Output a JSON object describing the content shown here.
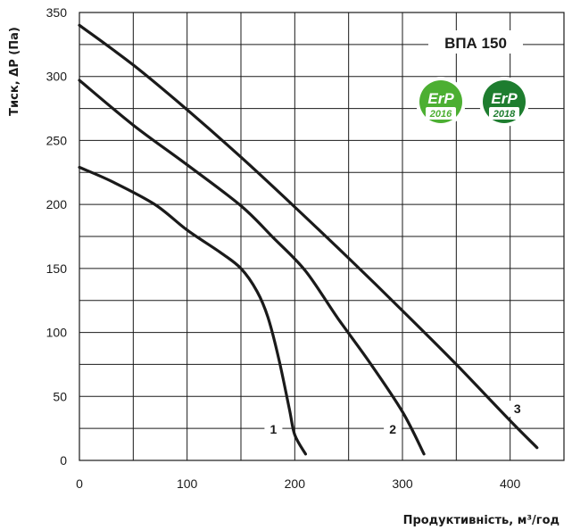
{
  "chart_data": {
    "type": "line",
    "title": "ВПА 150",
    "xlabel": "Продуктивність, м³/год",
    "ylabel": "Тиск, ΔP (Па)",
    "xlim": [
      0,
      450
    ],
    "ylim": [
      0,
      350
    ],
    "x_ticks": [
      "0",
      "100",
      "200",
      "300",
      "400"
    ],
    "y_ticks": [
      "0",
      "50",
      "100",
      "150",
      "200",
      "250",
      "300",
      "350"
    ],
    "grid": true,
    "legend": "none",
    "series": [
      {
        "name": "1",
        "points": [
          [
            0,
            229
          ],
          [
            30,
            218
          ],
          [
            70,
            200
          ],
          [
            100,
            180
          ],
          [
            130,
            163
          ],
          [
            150,
            150
          ],
          [
            165,
            132
          ],
          [
            175,
            112
          ],
          [
            185,
            80
          ],
          [
            195,
            40
          ],
          [
            200,
            20
          ],
          [
            210,
            5
          ]
        ]
      },
      {
        "name": "2",
        "points": [
          [
            0,
            297
          ],
          [
            50,
            262
          ],
          [
            100,
            231
          ],
          [
            150,
            199
          ],
          [
            180,
            174
          ],
          [
            210,
            148
          ],
          [
            240,
            111
          ],
          [
            270,
            76
          ],
          [
            300,
            38
          ],
          [
            320,
            5
          ]
        ]
      },
      {
        "name": "3",
        "points": [
          [
            0,
            340
          ],
          [
            50,
            309
          ],
          [
            100,
            274
          ],
          [
            150,
            237
          ],
          [
            200,
            198
          ],
          [
            250,
            158
          ],
          [
            300,
            117
          ],
          [
            350,
            75
          ],
          [
            400,
            31
          ],
          [
            425,
            10
          ]
        ]
      }
    ]
  },
  "badges": [
    {
      "top": "ErP",
      "year": "2016",
      "color": "#4caf32"
    },
    {
      "top": "ErP",
      "year": "2018",
      "color": "#1e7d2f"
    }
  ],
  "colors": {
    "line": "#1a1a1a",
    "grid": "#1a1a1a"
  }
}
